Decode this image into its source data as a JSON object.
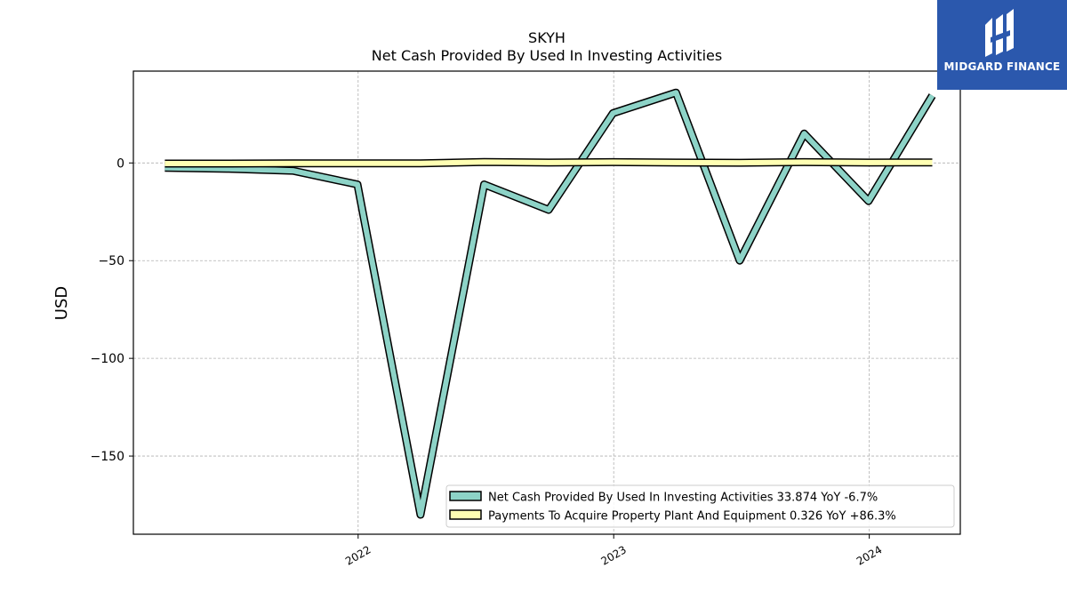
{
  "chart_data": {
    "type": "line",
    "title": "SKYH",
    "subtitle": "Net Cash Provided By Used In Investing Activities",
    "ylabel": "USD",
    "xlabel": "",
    "ylim": [
      -190,
      47
    ],
    "xlim": [
      "2021-02-14",
      "2024-05-10"
    ],
    "grid": true,
    "legend_position": "lower-right",
    "x_ticks": [
      "2022",
      "2023",
      "2024"
    ],
    "y_ticks": [
      0,
      -50,
      -100,
      -150
    ],
    "x": [
      "2021-03-31",
      "2021-06-30",
      "2021-09-30",
      "2021-12-31",
      "2022-03-31",
      "2022-06-30",
      "2022-09-30",
      "2022-12-31",
      "2023-03-31",
      "2023-06-30",
      "2023-09-30",
      "2023-12-31",
      "2024-03-31"
    ],
    "series": [
      {
        "name": "Net Cash Provided By Used In Investing Activities",
        "legend_label": "Net Cash Provided By Used In Investing Activities  33.874 YoY -6.7%",
        "color": "#8dd3c7",
        "values": [
          -2.5,
          -3,
          -4,
          -11,
          -180,
          -11,
          -24,
          25.5,
          36,
          -50,
          15,
          -19.5,
          34.5
        ]
      },
      {
        "name": "Payments To Acquire Property Plant And Equipment",
        "legend_label": "Payments To Acquire Property Plant And Equipment  0.326 YoY +86.3%",
        "color": "#ffffb3",
        "values": [
          -0.3,
          -0.3,
          -0.2,
          -0.2,
          -0.2,
          0.5,
          0.2,
          0.4,
          0.2,
          0.1,
          0.4,
          0.2,
          0.3
        ]
      }
    ]
  },
  "logo": {
    "text": "MIDGARD FINANCE",
    "icon": "midgard-logo-icon",
    "background": "#2b58ad"
  }
}
